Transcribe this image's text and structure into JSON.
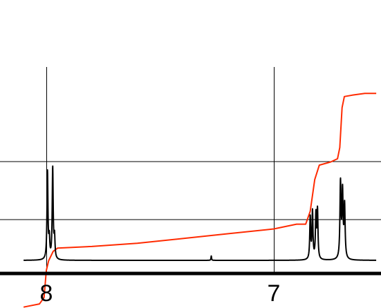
{
  "chart_data": {
    "type": "line",
    "title": "",
    "xlabel": "",
    "ylabel": "",
    "x_axis": {
      "reversed": true,
      "range_ppm": [
        8.1,
        6.55
      ],
      "major_ticks": [
        8,
        7
      ],
      "tick_labels": [
        "8",
        "7"
      ]
    },
    "grid": true,
    "colors": {
      "spectrum": "#000000",
      "integral": "#ff2a00",
      "grid": "#000000",
      "axis": "#000000"
    },
    "series": [
      {
        "kind": "spectrum",
        "baseline": 0,
        "peaks": [
          {
            "ppm": 7.995,
            "height": 1.0,
            "width": 0.0025
          },
          {
            "ppm": 7.987,
            "height": 0.22,
            "width": 0.0025
          },
          {
            "ppm": 7.972,
            "height": 1.04,
            "width": 0.0025
          },
          {
            "ppm": 7.964,
            "height": 0.24,
            "width": 0.0025
          },
          {
            "ppm": 7.275,
            "height": 0.05,
            "width": 0.0015
          },
          {
            "ppm": 6.84,
            "height": 0.48,
            "width": 0.0025
          },
          {
            "ppm": 6.83,
            "height": 0.54,
            "width": 0.0025
          },
          {
            "ppm": 6.815,
            "height": 0.5,
            "width": 0.0025
          },
          {
            "ppm": 6.808,
            "height": 0.55,
            "width": 0.0025
          },
          {
            "ppm": 6.707,
            "height": 0.86,
            "width": 0.0028
          },
          {
            "ppm": 6.698,
            "height": 0.74,
            "width": 0.0028
          },
          {
            "ppm": 6.689,
            "height": 0.6,
            "width": 0.0028
          }
        ]
      },
      {
        "kind": "integral",
        "points": [
          [
            8.1,
            0.3
          ],
          [
            8.03,
            0.32
          ],
          [
            8.01,
            0.36
          ],
          [
            8.0,
            0.53
          ],
          [
            7.99,
            0.59
          ],
          [
            7.97,
            0.65
          ],
          [
            7.95,
            0.67
          ],
          [
            7.8,
            0.68
          ],
          [
            7.6,
            0.7
          ],
          [
            7.4,
            0.73
          ],
          [
            7.2,
            0.76
          ],
          [
            7.0,
            0.79
          ],
          [
            6.9,
            0.82
          ],
          [
            6.86,
            0.82
          ],
          [
            6.84,
            0.9
          ],
          [
            6.82,
            1.1
          ],
          [
            6.8,
            1.19
          ],
          [
            6.75,
            1.21
          ],
          [
            6.72,
            1.23
          ],
          [
            6.71,
            1.3
          ],
          [
            6.7,
            1.55
          ],
          [
            6.69,
            1.62
          ],
          [
            6.65,
            1.63
          ],
          [
            6.6,
            1.64
          ],
          [
            6.55,
            1.64
          ]
        ]
      }
    ]
  }
}
